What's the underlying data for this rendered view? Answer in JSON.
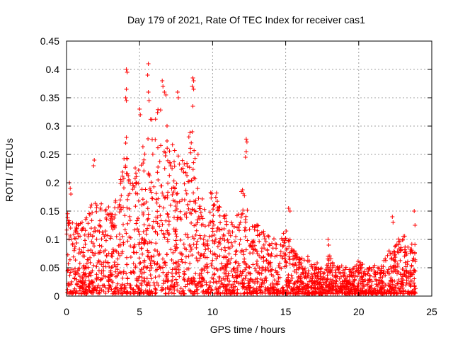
{
  "chart_data": {
    "type": "scatter",
    "title": "Day 179 of 2021, Rate Of TEC Index for receiver cas1",
    "xlabel": "GPS time / hours",
    "ylabel": "ROTI / TECUs",
    "xlim": [
      0,
      25
    ],
    "ylim": [
      0,
      0.45
    ],
    "xticks": [
      "0",
      "5",
      "10",
      "15",
      "20",
      "25"
    ],
    "yticks": [
      "0",
      "0.05",
      "0.1",
      "0.15",
      "0.2",
      "0.25",
      "0.3",
      "0.35",
      "0.4",
      "0.45"
    ],
    "grid": true,
    "marker": "+",
    "color": "#ff0000",
    "envelope": {
      "x": [
        0,
        0.1,
        0.3,
        0.5,
        1,
        1.5,
        2,
        2.5,
        3,
        3.5,
        4,
        4.5,
        5,
        5.5,
        6,
        6.5,
        7,
        7.5,
        8,
        8.5,
        9,
        9.5,
        10,
        10.5,
        11,
        11.5,
        12,
        12.5,
        13,
        13.5,
        14,
        14.5,
        15,
        15.5,
        16,
        16.5,
        17,
        17.5,
        18,
        18.5,
        19,
        19.5,
        20,
        20.5,
        21,
        21.5,
        22,
        22.5,
        23,
        23.5,
        23.9
      ],
      "y": [
        0.11,
        0.16,
        0.19,
        0.13,
        0.13,
        0.14,
        0.19,
        0.15,
        0.16,
        0.17,
        0.26,
        0.2,
        0.26,
        0.3,
        0.33,
        0.34,
        0.3,
        0.25,
        0.24,
        0.3,
        0.2,
        0.18,
        0.19,
        0.17,
        0.14,
        0.12,
        0.19,
        0.15,
        0.13,
        0.11,
        0.11,
        0.09,
        0.12,
        0.08,
        0.07,
        0.07,
        0.06,
        0.05,
        0.07,
        0.05,
        0.05,
        0.04,
        0.06,
        0.05,
        0.05,
        0.05,
        0.08,
        0.09,
        0.11,
        0.09,
        0.09
      ]
    },
    "outliers": [
      {
        "x": 0.2,
        "y": 0.2
      },
      {
        "x": 0.25,
        "y": 0.19
      },
      {
        "x": 1.9,
        "y": 0.24
      },
      {
        "x": 1.85,
        "y": 0.23
      },
      {
        "x": 4.1,
        "y": 0.4
      },
      {
        "x": 4.15,
        "y": 0.395
      },
      {
        "x": 4.1,
        "y": 0.365
      },
      {
        "x": 4.05,
        "y": 0.35
      },
      {
        "x": 4.1,
        "y": 0.345
      },
      {
        "x": 4.1,
        "y": 0.28
      },
      {
        "x": 4.05,
        "y": 0.27
      },
      {
        "x": 5.6,
        "y": 0.41
      },
      {
        "x": 5.55,
        "y": 0.39
      },
      {
        "x": 5.6,
        "y": 0.36
      },
      {
        "x": 5.65,
        "y": 0.345
      },
      {
        "x": 5.0,
        "y": 0.33
      },
      {
        "x": 5.05,
        "y": 0.32
      },
      {
        "x": 6.55,
        "y": 0.38
      },
      {
        "x": 6.6,
        "y": 0.37
      },
      {
        "x": 6.7,
        "y": 0.36
      },
      {
        "x": 6.8,
        "y": 0.355
      },
      {
        "x": 7.6,
        "y": 0.36
      },
      {
        "x": 7.65,
        "y": 0.35
      },
      {
        "x": 8.65,
        "y": 0.385
      },
      {
        "x": 8.7,
        "y": 0.38
      },
      {
        "x": 8.6,
        "y": 0.37
      },
      {
        "x": 8.7,
        "y": 0.365
      },
      {
        "x": 8.65,
        "y": 0.335
      },
      {
        "x": 8.6,
        "y": 0.29
      },
      {
        "x": 9.0,
        "y": 0.25
      },
      {
        "x": 12.3,
        "y": 0.277
      },
      {
        "x": 12.35,
        "y": 0.272
      },
      {
        "x": 12.3,
        "y": 0.255
      },
      {
        "x": 12.25,
        "y": 0.245
      },
      {
        "x": 15.2,
        "y": 0.155
      },
      {
        "x": 15.3,
        "y": 0.15
      },
      {
        "x": 17.9,
        "y": 0.1
      },
      {
        "x": 17.95,
        "y": 0.09
      },
      {
        "x": 22.3,
        "y": 0.14
      },
      {
        "x": 22.35,
        "y": 0.13
      },
      {
        "x": 23.8,
        "y": 0.15
      },
      {
        "x": 23.85,
        "y": 0.125
      }
    ]
  }
}
